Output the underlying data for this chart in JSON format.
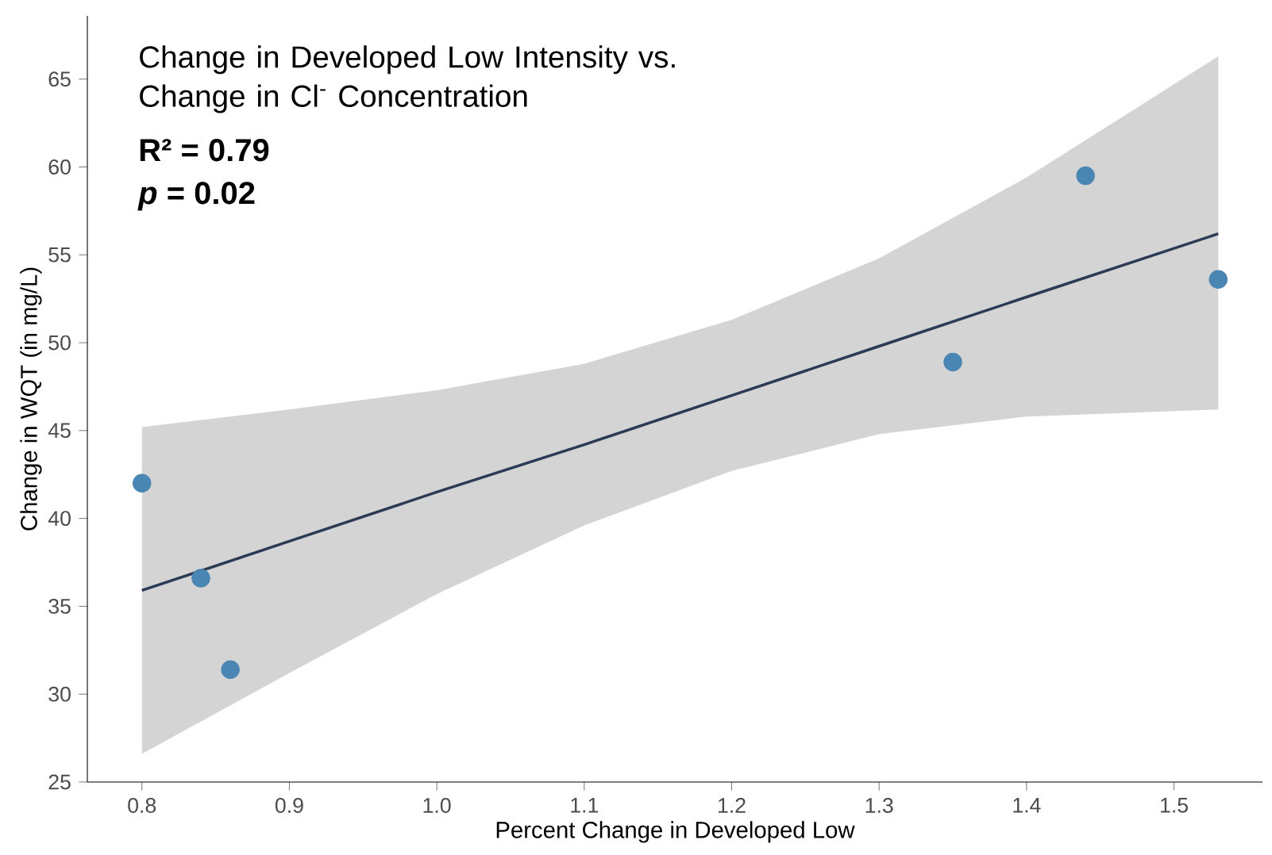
{
  "chart_data": {
    "type": "scatter",
    "title": "Change in Developed Low Intensity vs. Change in Cl$^{-}$ Concentration",
    "xlabel": "Percent Change in Developed Low",
    "ylabel": "Change in WQT (in mg/L)",
    "annotations": [
      "R² = 0.79",
      "*p* = 0.02"
    ],
    "series": [
      {
        "color": "#4a86b4",
        "marker": "circle",
        "x": [
          0.8,
          0.84,
          0.86,
          1.35,
          1.44,
          1.53
        ],
        "values": [
          42.0,
          36.6,
          31.4,
          48.9,
          59.5,
          53.6
        ]
      },
      {
        "type": "line",
        "color": "#2b3a55",
        "x": [
          0.8,
          0.9,
          1.0,
          1.1,
          1.2,
          1.3,
          1.4,
          1.53
        ],
        "values": [
          35.9,
          38.7,
          41.5,
          44.2,
          47.0,
          49.8,
          52.6,
          56.2
        ],
        "lower": [
          26.6,
          31.2,
          35.7,
          39.6,
          42.7,
          44.8,
          45.8,
          46.2
        ],
        "upper": [
          45.2,
          46.2,
          47.3,
          48.8,
          51.3,
          54.8,
          59.4,
          66.3
        ]
      }
    ],
    "xlim": [
      0.763,
      1.56
    ],
    "ylim": [
      25,
      68.6
    ],
    "xticks": [
      {
        "value": 0.8,
        "label": "0.8"
      },
      {
        "value": 0.9,
        "label": "0.9"
      },
      {
        "value": 1.0,
        "label": "1.0"
      },
      {
        "value": 1.1,
        "label": "1.1"
      },
      {
        "value": 1.2,
        "label": "1.2"
      },
      {
        "value": 1.3,
        "label": "1.3"
      },
      {
        "value": 1.4,
        "label": "1.4"
      },
      {
        "value": 1.5,
        "label": "1.5"
      }
    ],
    "yticks": [
      25,
      30,
      35,
      40,
      45,
      50,
      55,
      60,
      65
    ],
    "grid": false
  }
}
